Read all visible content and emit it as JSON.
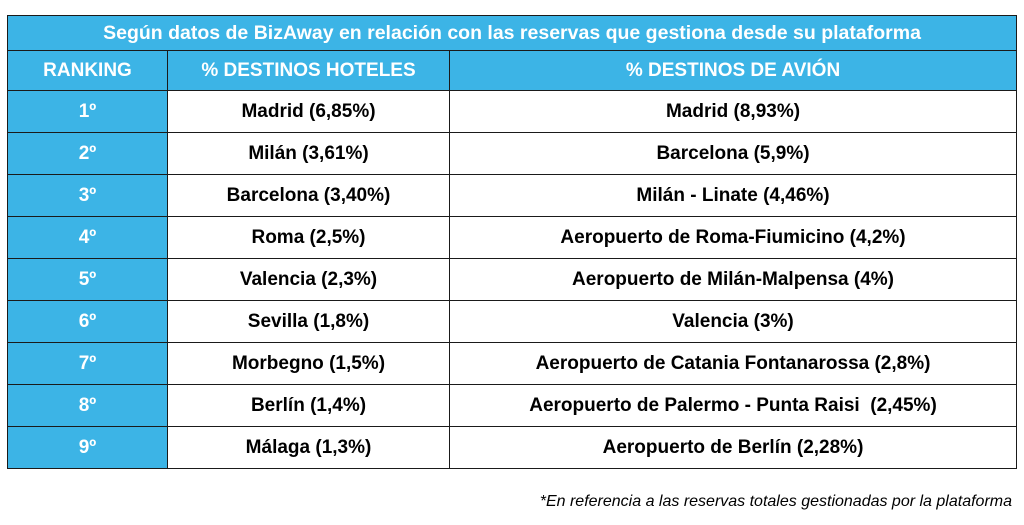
{
  "title": "Según datos de BizAway en relación con las reservas que gestiona desde su plataforma",
  "headers": {
    "ranking": "RANKING",
    "hoteles": "% DESTINOS HOTELES",
    "avion": "% DESTINOS DE AVIÓN"
  },
  "rows": [
    {
      "rank": "1º",
      "hotel": "Madrid (6,85%)",
      "avion": "Madrid (8,93%)"
    },
    {
      "rank": "2º",
      "hotel": "Milán (3,61%)",
      "avion": "Barcelona (5,9%)"
    },
    {
      "rank": "3º",
      "hotel": "Barcelona (3,40%)",
      "avion": "Milán - Linate (4,46%)"
    },
    {
      "rank": "4º",
      "hotel": "Roma (2,5%)",
      "avion": "Aeropuerto de Roma-Fiumicino (4,2%)"
    },
    {
      "rank": "5º",
      "hotel": "Valencia (2,3%)",
      "avion": "Aeropuerto de Milán-Malpensa (4%)"
    },
    {
      "rank": "6º",
      "hotel": "Sevilla (1,8%)",
      "avion": "Valencia (3%)"
    },
    {
      "rank": "7º",
      "hotel": "Morbegno (1,5%)",
      "avion": "Aeropuerto de Catania Fontanarossa (2,8%)"
    },
    {
      "rank": "8º",
      "hotel": "Berlín (1,4%)",
      "avion": "Aeropuerto de Palermo - Punta Raisi  (2,45%)"
    },
    {
      "rank": "9º",
      "hotel": "Málaga (1,3%)",
      "avion": "Aeropuerto de Berlín (2,28%)"
    }
  ],
  "footnote": "*En referencia a las reservas totales gestionadas por la plataforma",
  "colors": {
    "header_bg": "#3cb4e6",
    "header_text": "#ffffff",
    "border": "#1a1a1a"
  }
}
